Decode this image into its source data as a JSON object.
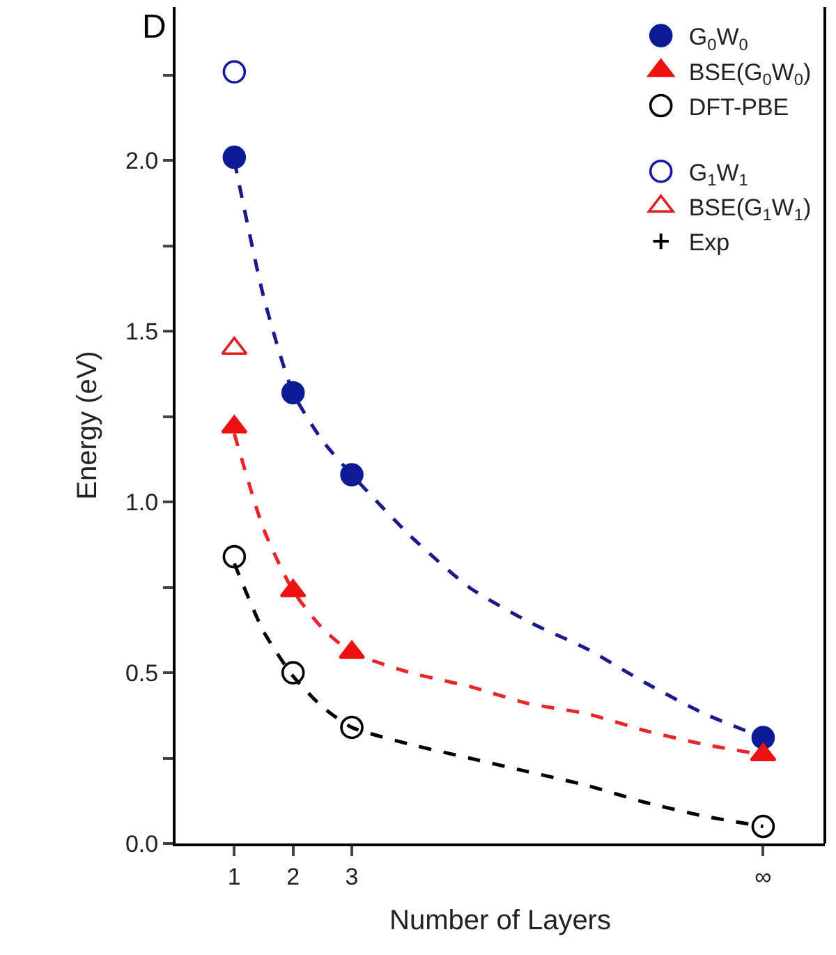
{
  "chart_data": {
    "type": "scatter",
    "title": "D",
    "xlabel": "Number of Layers",
    "ylabel": "Energy (eV)",
    "xlim": [
      0,
      11.05
    ],
    "xticks": [
      1,
      2,
      3,
      {
        "value": 10,
        "label": "∞"
      }
    ],
    "ylim": [
      0,
      2.45
    ],
    "yticks": [
      {
        "value": 0,
        "label": "0.0"
      },
      {
        "value": 0.25,
        "label": null
      },
      {
        "value": 0.5,
        "label": "0.5"
      },
      {
        "value": 0.75,
        "label": null
      },
      {
        "value": 1,
        "label": "1.0"
      },
      {
        "value": 1.25,
        "label": null
      },
      {
        "value": 1.5,
        "label": "1.5"
      },
      {
        "value": 1.75,
        "label": null
      },
      {
        "value": 2,
        "label": "2.0"
      },
      {
        "value": 2.25,
        "label": null
      }
    ],
    "legend": "top right",
    "series": [
      {
        "type": "line",
        "color": "#1a1a8c",
        "line_style": "dashed",
        "marker": "none",
        "x": [
          1,
          1.5,
          2,
          2.5,
          3,
          4,
          5,
          6,
          7,
          8,
          9,
          10
        ],
        "values": [
          2.0,
          1.6,
          1.32,
          1.18,
          1.08,
          0.9,
          0.75,
          0.65,
          0.57,
          0.47,
          0.38,
          0.31
        ]
      },
      {
        "type": "line",
        "color": "#e8262a",
        "line_style": "dashed",
        "marker": "none",
        "x": [
          1,
          1.5,
          2,
          2.5,
          3,
          4,
          5,
          6,
          7,
          8,
          9,
          10
        ],
        "values": [
          1.2,
          0.92,
          0.74,
          0.63,
          0.56,
          0.5,
          0.46,
          0.41,
          0.38,
          0.33,
          0.29,
          0.26
        ]
      },
      {
        "type": "line",
        "color": "#000000",
        "line_style": "dashed",
        "marker": "none",
        "x": [
          1,
          1.5,
          2,
          2.5,
          3,
          4,
          5,
          6,
          7,
          8,
          9,
          10
        ],
        "values": [
          0.82,
          0.62,
          0.49,
          0.4,
          0.34,
          0.29,
          0.25,
          0.21,
          0.17,
          0.12,
          0.08,
          0.05
        ]
      },
      {
        "name": "G$_{0}$W$_{0}$",
        "color": "#0d1a96",
        "marker": "circle",
        "x": [
          1,
          2,
          3,
          10
        ],
        "values": [
          2.01,
          1.32,
          1.08,
          0.31
        ]
      },
      {
        "name": "BSE(G$_{0}$W$_{0}$)",
        "color": "#ee1111",
        "marker": "triangle",
        "x": [
          1,
          2,
          3,
          10
        ],
        "values": [
          1.22,
          0.74,
          0.56,
          0.26
        ]
      },
      {
        "name": "DFT-PBE",
        "color": "#000000",
        "marker": "circle-open",
        "x": [
          1,
          2,
          3,
          10
        ],
        "values": [
          0.84,
          0.5,
          0.34,
          0.05
        ]
      },
      {
        "name": "G$_{1}$W$_{1}$",
        "color": "#1a1aa0",
        "marker": "circle-open",
        "x": [
          1
        ],
        "values": [
          2.26
        ]
      },
      {
        "name": "BSE(G$_{1}$W$_{1}$)",
        "color": "#e02020",
        "marker": "triangle-open",
        "x": [
          1
        ],
        "values": [
          1.45
        ]
      },
      {
        "name": "Exp",
        "color": "#000000",
        "marker": "cross",
        "values": [
          null
        ]
      }
    ]
  }
}
